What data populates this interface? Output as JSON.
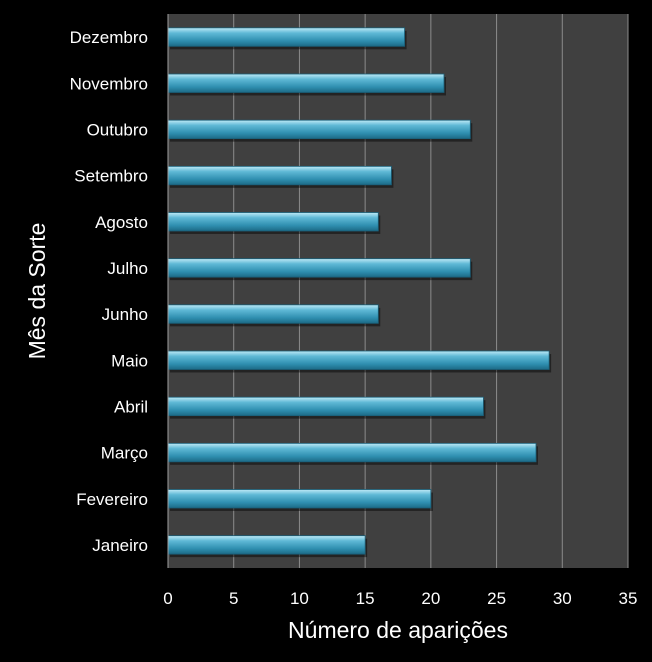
{
  "chart_data": {
    "type": "bar",
    "orientation": "horizontal",
    "categories": [
      "Janeiro",
      "Fevereiro",
      "Março",
      "Abril",
      "Maio",
      "Junho",
      "Julho",
      "Agosto",
      "Setembro",
      "Outubro",
      "Novembro",
      "Dezembro"
    ],
    "values": [
      15,
      20,
      28,
      24,
      29,
      16,
      23,
      16,
      17,
      23,
      21,
      18
    ],
    "xlabel": "Número de aparições",
    "ylabel": "Mês da Sorte",
    "xlim": [
      0,
      35
    ],
    "xticks": [
      0,
      5,
      10,
      15,
      20,
      25,
      30,
      35
    ],
    "grid": true,
    "colors": {
      "background": "#000000",
      "plot_area": "#404040",
      "bar": "#3d9ab8",
      "gridline": "#8c8c8c",
      "text": "#ffffff"
    }
  }
}
